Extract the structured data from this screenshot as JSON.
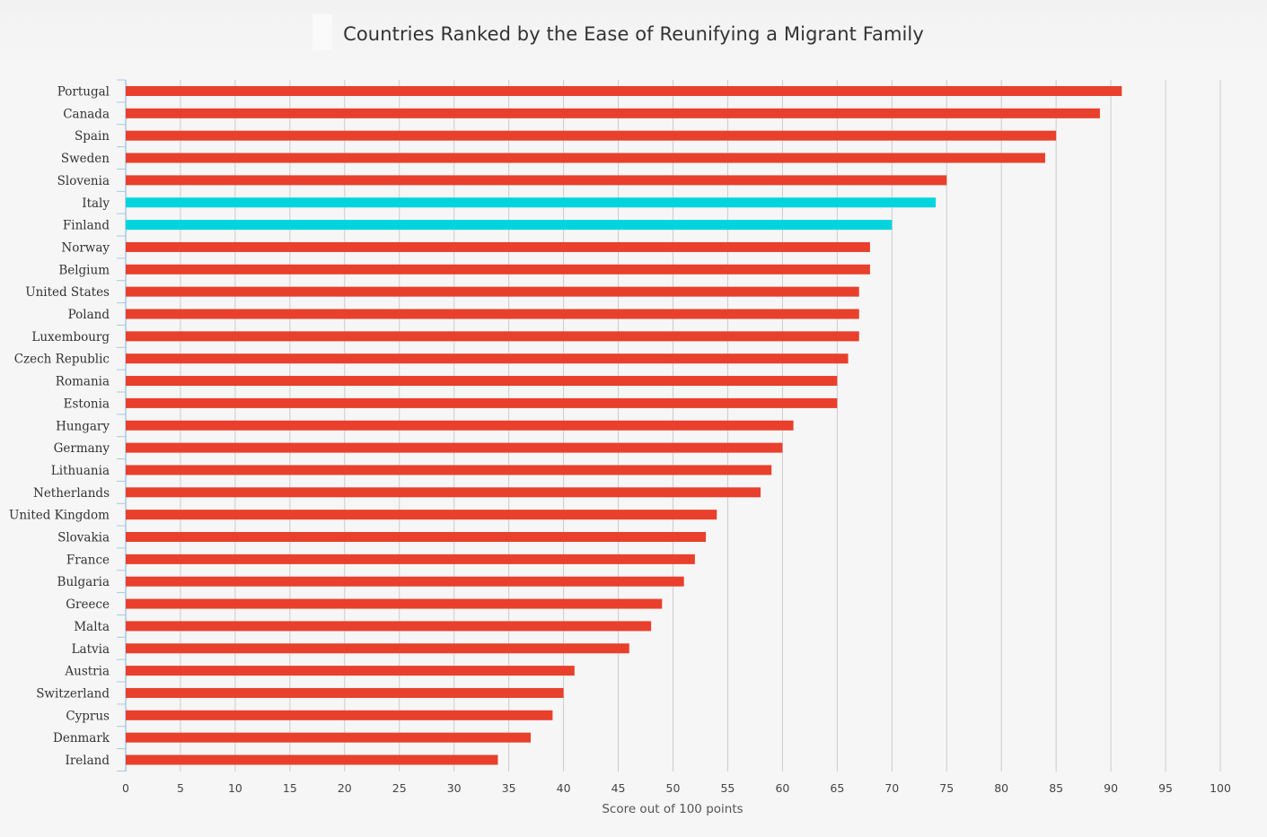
{
  "chart_data": {
    "type": "bar",
    "orientation": "horizontal",
    "title": "Countries Ranked by the Ease of Reunifying a Migrant Family",
    "xlabel": "Score out of 100 points",
    "ylabel": "",
    "xlim": [
      0,
      100
    ],
    "xticks": [
      0,
      5,
      10,
      15,
      20,
      25,
      30,
      35,
      40,
      45,
      50,
      55,
      60,
      65,
      70,
      75,
      80,
      85,
      90,
      95,
      100
    ],
    "grid": true,
    "colors": {
      "default": "#e8402c",
      "highlight": "#00d4df",
      "grid": "#cccccc",
      "axis": "#a9c8e0"
    },
    "categories": [
      "Portugal",
      "Canada",
      "Spain",
      "Sweden",
      "Slovenia",
      "Italy",
      "Finland",
      "Norway",
      "Belgium",
      "United States",
      "Poland",
      "Luxembourg",
      "Czech Republic",
      "Romania",
      "Estonia",
      "Hungary",
      "Germany",
      "Lithuania",
      "Netherlands",
      "United Kingdom",
      "Slovakia",
      "France",
      "Bulgaria",
      "Greece",
      "Malta",
      "Latvia",
      "Austria",
      "Switzerland",
      "Cyprus",
      "Denmark",
      "Ireland"
    ],
    "values": [
      91,
      89,
      85,
      84,
      75,
      74,
      70,
      68,
      68,
      67,
      67,
      67,
      66,
      65,
      65,
      61,
      60,
      59,
      58,
      54,
      53,
      52,
      51,
      49,
      48,
      46,
      41,
      40,
      39,
      37,
      34
    ],
    "highlighted": [
      "Italy",
      "Finland"
    ]
  }
}
